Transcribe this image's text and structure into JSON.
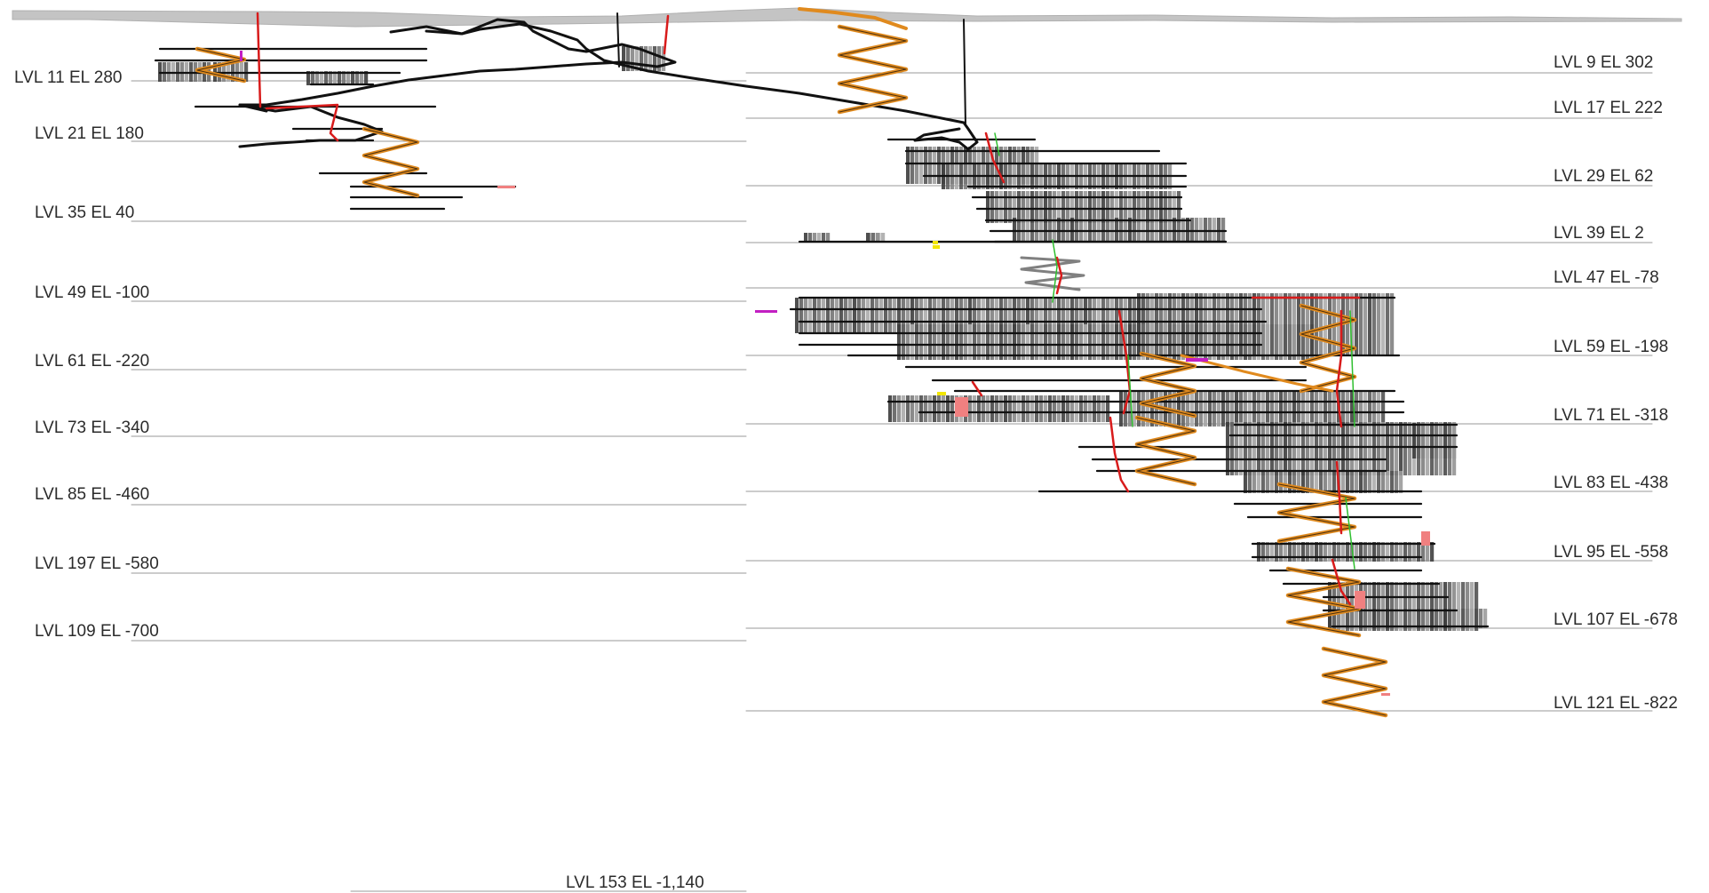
{
  "section": {
    "colors": {
      "surface": "#c4c4c4",
      "level_line": "#9a9a9a",
      "drift": "#111111",
      "ramp": "#e08a1e",
      "ramp_dark": "#4a3010",
      "raise": "#d81b1b",
      "raise_alt": "#2fbf2f",
      "stope": "#5a5a5a",
      "accent_magenta": "#c21fc2",
      "accent_yellow": "#f2e600",
      "accent_pink": "#f08080",
      "text": "#2b2b2b"
    },
    "left_levels": [
      {
        "label": "LVL 11 EL 280"
      },
      {
        "label": "LVL 21 EL 180"
      },
      {
        "label": "LVL 35 EL 40"
      },
      {
        "label": "LVL 49 EL -100"
      },
      {
        "label": "LVL 61 EL -220"
      },
      {
        "label": "LVL 73 EL -340"
      },
      {
        "label": "LVL 85 EL -460"
      },
      {
        "label": "LVL 197 EL -580"
      },
      {
        "label": "LVL 109 EL -700"
      }
    ],
    "right_levels": [
      {
        "label": "LVL 9 EL 302"
      },
      {
        "label": "LVL 17 EL 222"
      },
      {
        "label": "LVL 29 EL 62"
      },
      {
        "label": "LVL 39 EL 2"
      },
      {
        "label": "LVL 47 EL -78"
      },
      {
        "label": "LVL 59 EL -198"
      },
      {
        "label": "LVL 71 EL -318"
      },
      {
        "label": "LVL 83 EL -438"
      },
      {
        "label": "LVL 95 EL -558"
      },
      {
        "label": "LVL 107 EL -678"
      },
      {
        "label": "LVL 121 EL -822"
      }
    ],
    "bottom_level": {
      "label": "LVL 153 EL -1,140"
    }
  }
}
